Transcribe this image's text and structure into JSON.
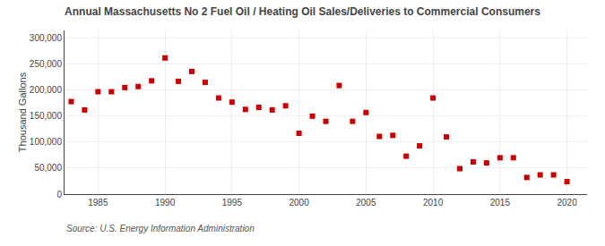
{
  "chart_data": {
    "type": "scatter",
    "title": "Annual Massachusetts No 2 Fuel Oil / Heating Oil Sales/Deliveries to Commercial Consumers",
    "ylabel": "Thousand Gallons",
    "source": "Source: U.S. Energy Information Administration",
    "x": [
      1983,
      1984,
      1985,
      1986,
      1987,
      1988,
      1989,
      1990,
      1991,
      1992,
      1993,
      1994,
      1995,
      1996,
      1997,
      1998,
      1999,
      2000,
      2001,
      2002,
      2003,
      2004,
      2005,
      2006,
      2007,
      2008,
      2009,
      2010,
      2011,
      2012,
      2013,
      2014,
      2015,
      2016,
      2017,
      2018,
      2019,
      2020
    ],
    "values": [
      178000,
      162000,
      197000,
      197000,
      205000,
      207000,
      218000,
      262000,
      217000,
      236000,
      215000,
      185000,
      177000,
      163000,
      167000,
      162000,
      170000,
      117000,
      150000,
      140000,
      209000,
      140000,
      157000,
      111000,
      113000,
      73000,
      93000,
      185000,
      110000,
      49000,
      62000,
      60000,
      70000,
      70000,
      32000,
      37000,
      37000,
      24000
    ],
    "color": "#cc0000",
    "marker": "square",
    "xlim": [
      1982.5,
      2021.5
    ],
    "xticks": [
      1985,
      1990,
      1995,
      2000,
      2005,
      2010,
      2015,
      2020
    ],
    "ylim": [
      0,
      315000
    ],
    "yticks": [
      0,
      {
        "value": 50000,
        "label": "50,000"
      },
      {
        "value": 100000,
        "label": "100,000"
      },
      {
        "value": 150000,
        "label": "150,000"
      },
      {
        "value": 200000,
        "label": "200,000"
      },
      {
        "value": 250000,
        "label": "250,000"
      },
      {
        "value": 300000,
        "label": "300,000"
      }
    ],
    "grid": true
  }
}
